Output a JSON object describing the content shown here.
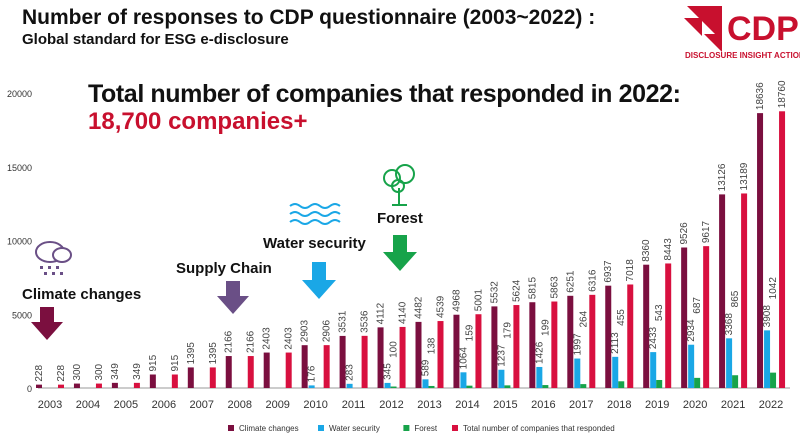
{
  "header": {
    "title": "Number of responses to CDP questionnaire (2003~2022) :",
    "subtitle": "Global standard for ESG e-disclosure"
  },
  "headline": {
    "line1": "Total number of companies that responded in 2022:",
    "line2": "18,700 companies+"
  },
  "logo": {
    "name": "CDP",
    "tagline": "DISCLOSURE INSIGHT ACTION"
  },
  "annotations": {
    "climate": "Climate changes",
    "supply": "Supply Chain",
    "water": "Water security",
    "forest": "Forest"
  },
  "colors": {
    "climate": "#7b0f3f",
    "water": "#1aa7e6",
    "forest": "#17a34a",
    "total": "#d8103f",
    "supply": "#6a4f86"
  },
  "chart_data": {
    "type": "bar",
    "title": "Number of responses to CDP questionnaire (2003~2022)",
    "xlabel": "",
    "ylabel": "",
    "ylim": [
      0,
      20000
    ],
    "yticks": [
      0,
      5000,
      10000,
      15000,
      20000
    ],
    "legend_position": "bottom",
    "categories": [
      "2003",
      "2004",
      "2005",
      "2006",
      "2007",
      "2008",
      "2009",
      "2010",
      "2011",
      "2012",
      "2013",
      "2014",
      "2015",
      "2016",
      "2017",
      "2018",
      "2019",
      "2020",
      "2021",
      "2022"
    ],
    "series": [
      {
        "name": "Climate changes",
        "values": [
          228,
          300,
          349,
          915,
          1395,
          2166,
          2403,
          2903,
          3531,
          4112,
          4482,
          4968,
          5532,
          5815,
          6251,
          6937,
          8360,
          9526,
          13126,
          18636
        ]
      },
      {
        "name": "Water security",
        "values": [
          null,
          null,
          null,
          null,
          null,
          null,
          null,
          176,
          283,
          345,
          589,
          1064,
          1237,
          1426,
          1997,
          2113,
          2433,
          2934,
          3368,
          3908
        ]
      },
      {
        "name": "Forest",
        "values": [
          null,
          null,
          null,
          null,
          null,
          null,
          null,
          null,
          null,
          100,
          138,
          159,
          179,
          199,
          264,
          455,
          543,
          687,
          865,
          1042
        ]
      },
      {
        "name": "Total number of companies that responded",
        "values": [
          228,
          300,
          349,
          915,
          1395,
          2166,
          2403,
          2906,
          3536,
          4140,
          4539,
          5001,
          5624,
          5863,
          6316,
          7018,
          8443,
          9617,
          13189,
          18760
        ]
      }
    ]
  }
}
